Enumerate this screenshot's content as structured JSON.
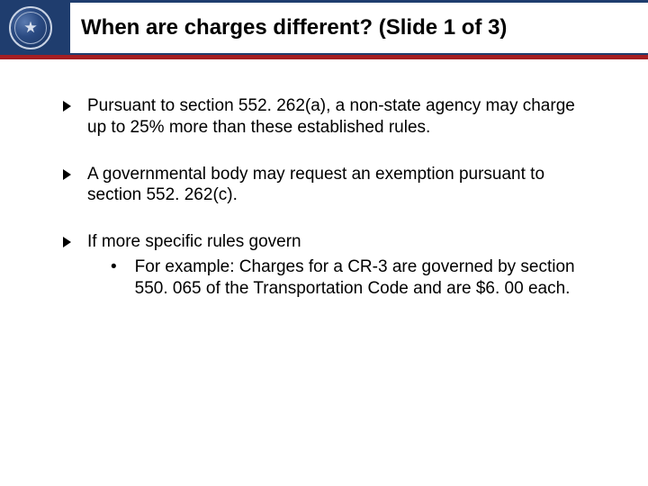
{
  "header": {
    "title": "When are charges different? (Slide 1 of 3)",
    "bg_color": "#1f3d6e",
    "accent_color": "#a41e22"
  },
  "bullets": [
    {
      "text": "Pursuant to section 552. 262(a), a non-state agency may charge up to 25% more than these established rules."
    },
    {
      "text": "A governmental body may request an exemption pursuant to section 552. 262(c)."
    },
    {
      "text": "If more specific rules govern",
      "sub": [
        {
          "marker": "•",
          "text": "For example: Charges for a CR-3 are governed by section 550. 065 of the Transportation Code and are $6. 00 each."
        }
      ]
    }
  ]
}
